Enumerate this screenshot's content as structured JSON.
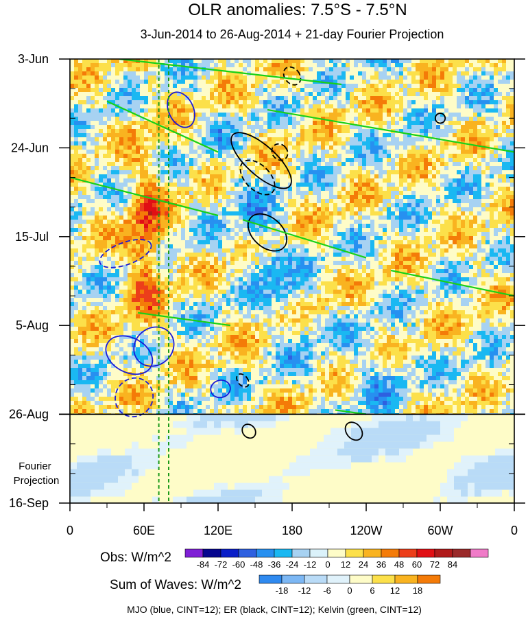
{
  "chart_data": {
    "type": "heatmap",
    "title": "OLR anomalies: 7.5°S - 7.5°N",
    "subtitle": "3-Jun-2014 to 26-Aug-2014 + 21-day Fourier Projection",
    "x_ticks": [
      "0",
      "60E",
      "120E",
      "180",
      "120W",
      "60W",
      "0"
    ],
    "x_tick_lon": [
      0,
      60,
      120,
      180,
      240,
      300,
      360
    ],
    "y_ticks": [
      "3-Jun",
      "24-Jun",
      "15-Jul",
      "5-Aug",
      "26-Aug",
      "16-Sep"
    ],
    "y_tick_day": [
      0,
      21,
      42,
      63,
      84,
      105
    ],
    "y_range_days": [
      0,
      105
    ],
    "observed_end_day": 84,
    "projection_label": "Fourier Projection",
    "reference_lon": [
      72,
      80
    ],
    "legend_obs": {
      "label": "Obs: W/m^2",
      "levels": [
        "-84",
        "-72",
        "-60",
        "-48",
        "-36",
        "-24",
        "-12",
        "0",
        "12",
        "24",
        "36",
        "48",
        "60",
        "72",
        "84"
      ],
      "colors": [
        "#7f1fd6",
        "#06068f",
        "#0a1ec8",
        "#2e60e0",
        "#2790f0",
        "#1ab8f2",
        "#a7d2f2",
        "#dbf2fa",
        "#fefcc8",
        "#fce04a",
        "#f9b320",
        "#f47b08",
        "#ec3e1a",
        "#e10f14",
        "#b01a1a",
        "#9a2a2a",
        "#f07bc8"
      ]
    },
    "legend_waves": {
      "label": "Sum of Waves: W/m^2",
      "levels": [
        "-18",
        "-12",
        "-6",
        "0",
        "6",
        "12",
        "18"
      ],
      "colors": [
        "#2f8af0",
        "#7cb7f4",
        "#b9dbf7",
        "#e0f2fb",
        "#fefcc8",
        "#fce04a",
        "#f9b320",
        "#f47b08"
      ]
    },
    "footnote": "MJO (blue, CINT=12); ER (black, CINT=12); Kelvin (green, CINT=12)",
    "wave_contours": [
      {
        "wave": "MJO",
        "color": "#1a1ad6"
      },
      {
        "wave": "ER",
        "color": "#000000"
      },
      {
        "wave": "Kelvin",
        "color": "#18d018"
      }
    ]
  }
}
